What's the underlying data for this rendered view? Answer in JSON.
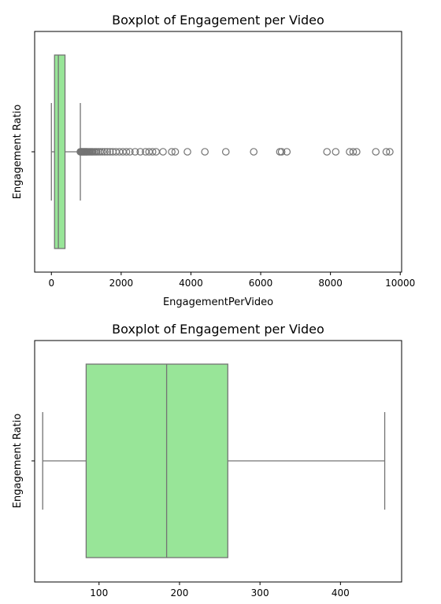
{
  "chart_data": [
    {
      "type": "boxplot",
      "orientation": "horizontal",
      "title": "Boxplot of Engagement per Video",
      "xlabel": "EngagementPerVideo",
      "ylabel": "Engagement Ratio",
      "xlim": [
        -480,
        10040
      ],
      "xticks": [
        0,
        2000,
        4000,
        6000,
        8000,
        10000
      ],
      "xtick_labels": [
        "0",
        "2000",
        "4000",
        "6000",
        "8000",
        "10000"
      ],
      "ytick_labels": [
        ""
      ],
      "box": {
        "whisker_low": 0,
        "q1": 90,
        "median": 200,
        "q3": 390,
        "whisker_high": 830
      },
      "fill_color": "#98e598",
      "line_color": "#737373",
      "outliers": [
        830,
        850,
        870,
        890,
        910,
        930,
        950,
        970,
        990,
        1010,
        1030,
        1060,
        1090,
        1120,
        1150,
        1180,
        1220,
        1260,
        1300,
        1350,
        1400,
        1460,
        1530,
        1600,
        1680,
        1760,
        1850,
        1950,
        2050,
        2150,
        2250,
        2400,
        2550,
        2700,
        2800,
        2900,
        3000,
        3200,
        3450,
        3550,
        3900,
        4400,
        5000,
        5800,
        6550,
        6600,
        6750,
        7900,
        8150,
        8550,
        8650,
        8750,
        9300,
        9600,
        9700
      ]
    },
    {
      "type": "boxplot",
      "orientation": "horizontal",
      "title": "Boxplot of Engagement per Video",
      "xlabel": "",
      "ylabel": "Engagement Ratio",
      "xlim": [
        20,
        476
      ],
      "xticks": [
        100,
        200,
        300,
        400
      ],
      "xtick_labels": [
        "100",
        "200",
        "300",
        "400"
      ],
      "ytick_labels": [
        ""
      ],
      "box": {
        "whisker_low": 30,
        "q1": 84,
        "median": 184,
        "q3": 260,
        "whisker_high": 455
      },
      "fill_color": "#98e598",
      "line_color": "#737373",
      "outliers": []
    }
  ]
}
